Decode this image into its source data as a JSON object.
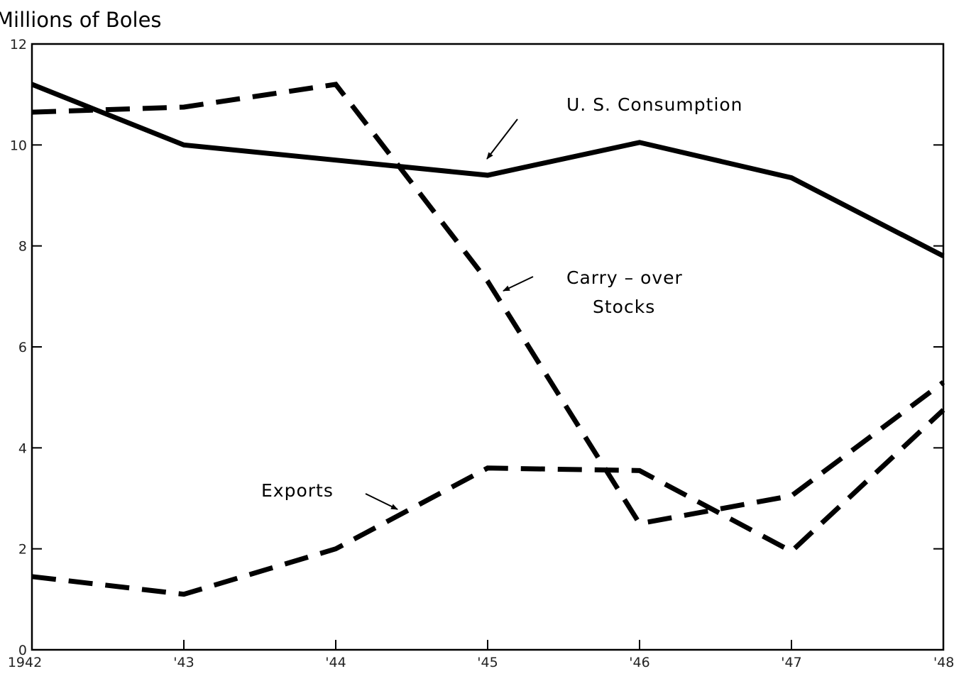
{
  "chart_data": {
    "type": "line",
    "ylabel": "Millions of Boles",
    "x": [
      "1942",
      "'43",
      "'44",
      "'45",
      "'46",
      "'47",
      "'48"
    ],
    "yticks": [
      "0",
      "2",
      "4",
      "6",
      "8",
      "10",
      "12"
    ],
    "ylim": [
      0,
      12
    ],
    "grid": false,
    "series": [
      {
        "key": "consumption",
        "values": [
          11.2,
          10.0,
          9.7,
          9.4,
          10.05,
          9.35,
          7.8
        ],
        "style": "solid"
      },
      {
        "key": "carryover",
        "values": [
          10.65,
          10.75,
          11.2,
          7.3,
          2.5,
          3.05,
          5.3
        ],
        "style": "dashed"
      },
      {
        "key": "exports",
        "values": [
          1.45,
          1.1,
          2.0,
          3.6,
          3.55,
          1.95,
          4.75
        ],
        "style": "dashed"
      }
    ],
    "annotations": [
      {
        "key": "consumption",
        "lines": [
          "U. S. Consumption"
        ]
      },
      {
        "key": "carryover",
        "lines": [
          "Carry – over",
          "Stocks"
        ]
      },
      {
        "key": "exports",
        "lines": [
          "Exports"
        ]
      }
    ],
    "colors": {
      "line": "#000000",
      "axis": "#000000"
    }
  }
}
